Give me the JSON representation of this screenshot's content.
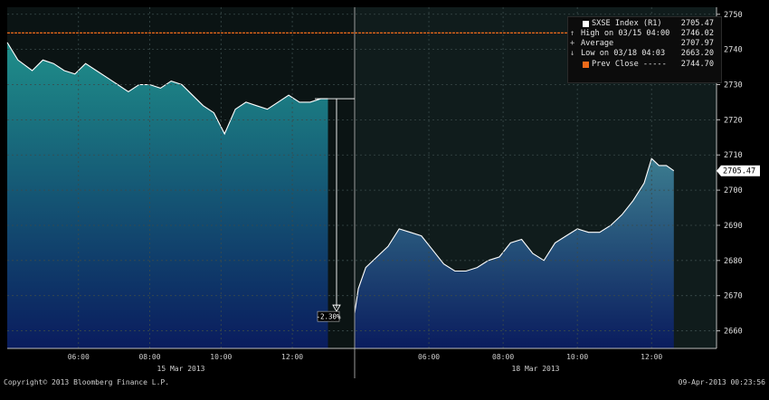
{
  "chart_data": {
    "type": "area",
    "title": "",
    "xlabel": "",
    "ylabel": "",
    "ylim": [
      2655,
      2752
    ],
    "yticks": [
      2660,
      2670,
      2680,
      2690,
      2700,
      2710,
      2720,
      2730,
      2740,
      2750
    ],
    "grid": true,
    "legend_position": "top-right",
    "sessions": [
      {
        "date_label": "15 Mar 2013",
        "time_ticks": [
          "06:00",
          "08:00",
          "10:00",
          "12:00"
        ],
        "x_hours": [
          4.0,
          4.3,
          4.7,
          5.0,
          5.3,
          5.6,
          5.9,
          6.2,
          6.5,
          6.8,
          7.1,
          7.4,
          7.7,
          8.0,
          8.3,
          8.6,
          8.9,
          9.2,
          9.5,
          9.8,
          10.0,
          10.1,
          10.4,
          10.7,
          11.0,
          11.3,
          11.6,
          11.9,
          12.2,
          12.5,
          12.8,
          13.0
        ],
        "values": [
          2742,
          2737,
          2734,
          2737,
          2736,
          2734,
          2733,
          2736,
          2734,
          2732,
          2730,
          2728,
          2730,
          2730,
          2729,
          2731,
          2730,
          2727,
          2724,
          2722,
          2718,
          2716,
          2723,
          2725,
          2724,
          2723,
          2725,
          2727,
          2725,
          2725,
          2726,
          2726
        ]
      },
      {
        "date_label": "18 Mar 2013",
        "time_ticks": [
          "06:00",
          "08:00",
          "10:00",
          "12:00"
        ],
        "x_hours": [
          4.0,
          4.1,
          4.3,
          4.6,
          4.9,
          5.2,
          5.5,
          5.8,
          6.1,
          6.4,
          6.7,
          7.0,
          7.3,
          7.6,
          7.9,
          8.2,
          8.5,
          8.8,
          9.1,
          9.4,
          9.7,
          10.0,
          10.3,
          10.6,
          10.9,
          11.2,
          11.5,
          11.8,
          12.0,
          12.2,
          12.4,
          12.6
        ],
        "values": [
          2665,
          2672,
          2678,
          2681,
          2684,
          2689,
          2688,
          2687,
          2683,
          2679,
          2677,
          2677,
          2678,
          2680,
          2681,
          2685,
          2686,
          2682,
          2680,
          2685,
          2687,
          2689,
          2688,
          2688,
          2690,
          2693,
          2697,
          2702,
          2709,
          2707,
          2707,
          2705.5
        ]
      }
    ],
    "prev_close": 2744.7,
    "last_value_label": "2705.47",
    "drop_annotation": "-2.30%",
    "legend": [
      {
        "symbol": "",
        "label": "SXSE Index  (R1)",
        "value": "2705.47",
        "swatch": "white"
      },
      {
        "symbol": "↑",
        "label": "High on 03/15 04:00",
        "value": "2746.02",
        "swatch": ""
      },
      {
        "symbol": "+",
        "label": "Average",
        "value": "2707.97",
        "swatch": ""
      },
      {
        "symbol": "↓",
        "label": "Low on 03/18 04:03",
        "value": "2663.20",
        "swatch": ""
      },
      {
        "symbol": "",
        "label": "Prev Close  -----",
        "value": "2744.70",
        "swatch": "orange"
      }
    ],
    "colors": {
      "area_top_session1": "#1f8f8a",
      "area_bottom": "#0a1c5e",
      "area_top_session2": "#3b7c8f",
      "line": "#ffffff",
      "prev_close": "#ef6a1a",
      "grid": "#3a4a4a",
      "background": "#000000"
    }
  },
  "footer": {
    "copyright": "Copyright© 2013 Bloomberg Finance L.P.",
    "timestamp": "09-Apr-2013 00:23:56"
  }
}
